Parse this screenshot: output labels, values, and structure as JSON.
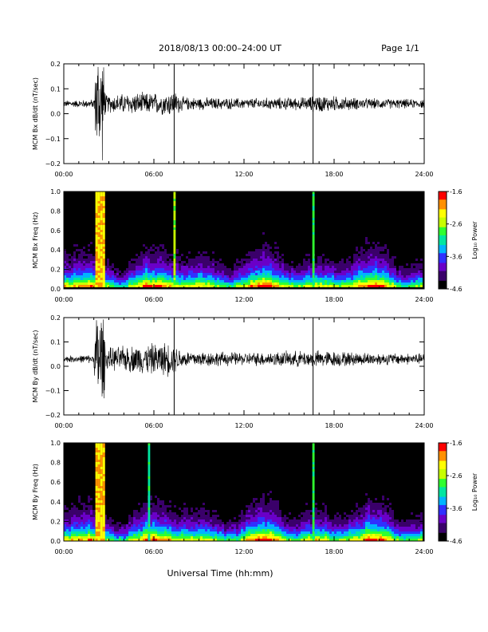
{
  "header": {
    "title": "2018/08/13  00:00–24:00 UT",
    "page": "Page 1/1"
  },
  "footer": {
    "xlabel": "Universal Time (hh:mm)"
  },
  "colors": {
    "trace": "#000000",
    "spectrogram_background": "#000000",
    "colorscale": [
      "#000000",
      "#3a006a",
      "#6a00c8",
      "#3030ff",
      "#00b4ff",
      "#00e6a0",
      "#30ff30",
      "#c8ff00",
      "#ffff00",
      "#ff9000",
      "#ff0000"
    ]
  },
  "chart_data": [
    {
      "type": "line",
      "ylabel": "MCM Bx dB/dt (nT/sec)",
      "ylim": [
        -0.2,
        0.2
      ],
      "yticks": [
        "0.2",
        "0.1",
        "0.0",
        "−0.1",
        "−0.2"
      ],
      "xticks": [
        "00:00",
        "06:00",
        "12:00",
        "18:00",
        "24:00"
      ],
      "xlim_hours": [
        0,
        24
      ],
      "baseline": 0.04,
      "noise_envelope": [
        [
          0,
          0.015
        ],
        [
          2,
          0.02
        ],
        [
          2.2,
          0.25
        ],
        [
          2.6,
          0.25
        ],
        [
          2.8,
          0.04
        ],
        [
          4.5,
          0.05
        ],
        [
          6.5,
          0.05
        ],
        [
          7.3,
          0.06
        ],
        [
          8,
          0.03
        ],
        [
          12,
          0.025
        ],
        [
          16,
          0.03
        ],
        [
          17,
          0.04
        ],
        [
          20,
          0.025
        ],
        [
          24,
          0.02
        ]
      ],
      "spikes": [
        {
          "t": 7.35,
          "min": -0.2,
          "max": 0.2
        },
        {
          "t": 16.6,
          "min": -0.2,
          "max": 0.2
        }
      ]
    },
    {
      "type": "heatmap",
      "ylabel": "MCM Bx Freq (Hz)",
      "ylim": [
        0.0,
        1.0
      ],
      "yticks": [
        "1.0",
        "0.8",
        "0.6",
        "0.4",
        "0.2",
        "0.0"
      ],
      "xticks": [
        "00:00",
        "06:00",
        "12:00",
        "18:00",
        "24:00"
      ],
      "xlim_hours": [
        0,
        24
      ],
      "colorbar": {
        "label": "Log₁₀ Power",
        "range": [
          -4.6,
          -1.6
        ],
        "ticks": [
          "-1.6",
          "-2.6",
          "-3.6",
          "-4.6"
        ]
      },
      "bands": [
        {
          "t0": 2.1,
          "t1": 2.75,
          "level": 0.78
        },
        {
          "t0": 7.3,
          "t1": 7.45,
          "level": 0.62
        },
        {
          "t0": 16.55,
          "t1": 16.7,
          "level": 0.55
        }
      ]
    },
    {
      "type": "line",
      "ylabel": "MCM By dB/dt (nT/sec)",
      "ylim": [
        -0.2,
        0.2
      ],
      "yticks": [
        "0.2",
        "0.1",
        "0.0",
        "−0.1",
        "−0.2"
      ],
      "xticks": [
        "00:00",
        "06:00",
        "12:00",
        "18:00",
        "24:00"
      ],
      "xlim_hours": [
        0,
        24
      ],
      "baseline": 0.03,
      "noise_envelope": [
        [
          0,
          0.015
        ],
        [
          2,
          0.02
        ],
        [
          2.2,
          0.25
        ],
        [
          2.6,
          0.25
        ],
        [
          2.8,
          0.05
        ],
        [
          4,
          0.06
        ],
        [
          7,
          0.08
        ],
        [
          8,
          0.04
        ],
        [
          12,
          0.03
        ],
        [
          17,
          0.04
        ],
        [
          20,
          0.03
        ],
        [
          24,
          0.025
        ]
      ],
      "spikes": [
        {
          "t": 7.35,
          "min": -0.2,
          "max": 0.2
        },
        {
          "t": 16.6,
          "min": -0.2,
          "max": 0.2
        }
      ]
    },
    {
      "type": "heatmap",
      "ylabel": "MCM By Freq (Hz)",
      "ylim": [
        0.0,
        1.0
      ],
      "yticks": [
        "1.0",
        "0.8",
        "0.6",
        "0.4",
        "0.2",
        "0.0"
      ],
      "xticks": [
        "00:00",
        "06:00",
        "12:00",
        "18:00",
        "24:00"
      ],
      "xlim_hours": [
        0,
        24
      ],
      "colorbar": {
        "label": "Log₁₀ Power",
        "range": [
          -4.6,
          -1.6
        ],
        "ticks": [
          "-1.6",
          "-2.6",
          "-3.6",
          "-4.6"
        ]
      },
      "bands": [
        {
          "t0": 2.1,
          "t1": 2.75,
          "level": 0.78
        },
        {
          "t0": 5.6,
          "t1": 5.75,
          "level": 0.5
        },
        {
          "t0": 16.55,
          "t1": 16.7,
          "level": 0.55
        }
      ]
    }
  ]
}
